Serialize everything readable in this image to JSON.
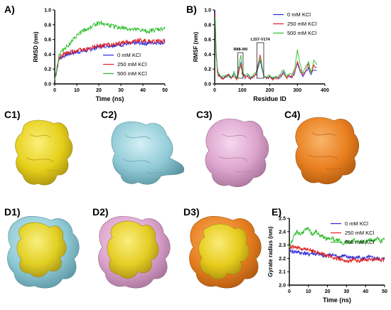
{
  "colors": {
    "red": "#e02020",
    "blue": "#2a2ad8",
    "green": "#2bbd2b",
    "yellow": "#e8d418",
    "cyan": "#8fd0dc",
    "pink": "#dfa6d0",
    "orange": "#ea8022"
  },
  "panels": {
    "A": "A)",
    "B": "B)",
    "C1": "C1)",
    "C2": "C2)",
    "C3": "C3)",
    "C4": "C4)",
    "D1": "D1)",
    "D2": "D2)",
    "D3": "D3)",
    "E": "E)"
  },
  "structures": {
    "C1": {
      "color": "yellow"
    },
    "C2": {
      "color": "cyan"
    },
    "C3": {
      "color": "pink"
    },
    "C4": {
      "color": "orange"
    },
    "D1": {
      "colors": [
        "cyan",
        "yellow"
      ]
    },
    "D2": {
      "colors": [
        "pink",
        "yellow"
      ]
    },
    "D3": {
      "colors": [
        "orange",
        "yellow"
      ]
    }
  },
  "chart_data": [
    {
      "id": "A",
      "type": "line",
      "xlabel": "Time (ns)",
      "ylabel": "RMSD (nm)",
      "xlim": [
        0,
        50
      ],
      "ylim": [
        0,
        1.0
      ],
      "xticks": [
        0,
        10,
        20,
        30,
        40,
        50
      ],
      "yticks": [
        0.0,
        0.2,
        0.4,
        0.6,
        0.8,
        1.0
      ],
      "ytick_labels": [
        "0.0",
        "0.2",
        "0.4",
        "0.6",
        "0.8",
        "1.0"
      ],
      "legend_position": "bottom-right",
      "x": [
        0,
        2,
        4,
        6,
        8,
        10,
        12,
        14,
        16,
        18,
        20,
        22,
        24,
        26,
        28,
        30,
        32,
        34,
        36,
        38,
        40,
        42,
        44,
        46,
        48,
        50
      ],
      "series": [
        {
          "name": "0 mM KCl",
          "color": "blue",
          "values": [
            0.05,
            0.34,
            0.38,
            0.4,
            0.42,
            0.43,
            0.44,
            0.45,
            0.47,
            0.48,
            0.5,
            0.51,
            0.52,
            0.52,
            0.53,
            0.53,
            0.54,
            0.54,
            0.55,
            0.55,
            0.55,
            0.55,
            0.56,
            0.56,
            0.56,
            0.56
          ]
        },
        {
          "name": "250 mM KCl",
          "color": "red",
          "values": [
            0.05,
            0.36,
            0.4,
            0.42,
            0.44,
            0.45,
            0.46,
            0.47,
            0.48,
            0.5,
            0.51,
            0.52,
            0.53,
            0.53,
            0.54,
            0.55,
            0.56,
            0.57,
            0.58,
            0.59,
            0.59,
            0.58,
            0.58,
            0.57,
            0.58,
            0.58
          ]
        },
        {
          "name": "500 mM KCl",
          "color": "green",
          "values": [
            0.05,
            0.4,
            0.47,
            0.52,
            0.58,
            0.65,
            0.7,
            0.73,
            0.76,
            0.8,
            0.83,
            0.82,
            0.8,
            0.78,
            0.77,
            0.76,
            0.75,
            0.74,
            0.73,
            0.73,
            0.72,
            0.71,
            0.72,
            0.73,
            0.74,
            0.75
          ]
        }
      ]
    },
    {
      "id": "B",
      "type": "line",
      "xlabel": "Residue ID",
      "ylabel": "RMSF (nm)",
      "xlim": [
        0,
        400
      ],
      "ylim": [
        0,
        1.0
      ],
      "xticks": [
        0,
        100,
        200,
        300,
        400
      ],
      "yticks": [
        0.0,
        0.2,
        0.4,
        0.6,
        0.8,
        1.0
      ],
      "ytick_labels": [
        "0.0",
        "0.2",
        "0.4",
        "0.6",
        "0.8",
        "1.0"
      ],
      "legend_position": "top-right",
      "annotations": [
        {
          "text": "R88-I99",
          "x_range": [
            88,
            99
          ]
        },
        {
          "text": "L157-V174",
          "x_range": [
            157,
            174
          ]
        }
      ],
      "x": [
        1,
        5,
        10,
        15,
        20,
        30,
        40,
        50,
        60,
        70,
        80,
        90,
        95,
        100,
        110,
        120,
        130,
        140,
        150,
        160,
        165,
        170,
        180,
        190,
        200,
        210,
        220,
        230,
        240,
        250,
        260,
        270,
        280,
        290,
        300,
        310,
        320,
        330,
        340,
        350,
        360,
        370
      ],
      "series": [
        {
          "name": "0 mM KCl",
          "color": "blue",
          "values": [
            1.0,
            0.45,
            0.18,
            0.12,
            0.1,
            0.08,
            0.09,
            0.12,
            0.08,
            0.14,
            0.07,
            0.22,
            0.28,
            0.16,
            0.08,
            0.12,
            0.07,
            0.1,
            0.12,
            0.25,
            0.32,
            0.22,
            0.09,
            0.08,
            0.1,
            0.07,
            0.09,
            0.08,
            0.1,
            0.16,
            0.08,
            0.1,
            0.09,
            0.14,
            0.28,
            0.18,
            0.1,
            0.16,
            0.22,
            0.12,
            0.2,
            0.18
          ]
        },
        {
          "name": "250 mM KCl",
          "color": "red",
          "values": [
            0.95,
            0.4,
            0.16,
            0.1,
            0.09,
            0.07,
            0.1,
            0.14,
            0.07,
            0.12,
            0.06,
            0.2,
            0.26,
            0.14,
            0.09,
            0.1,
            0.06,
            0.09,
            0.14,
            0.3,
            0.4,
            0.28,
            0.1,
            0.07,
            0.09,
            0.06,
            0.08,
            0.07,
            0.12,
            0.14,
            0.07,
            0.12,
            0.1,
            0.16,
            0.3,
            0.2,
            0.12,
            0.18,
            0.28,
            0.14,
            0.25,
            0.22
          ]
        },
        {
          "name": "500 mM KCl",
          "color": "green",
          "values": [
            0.9,
            0.38,
            0.2,
            0.14,
            0.11,
            0.09,
            0.12,
            0.1,
            0.09,
            0.16,
            0.08,
            0.3,
            0.38,
            0.18,
            0.1,
            0.14,
            0.08,
            0.12,
            0.15,
            0.28,
            0.35,
            0.25,
            0.1,
            0.09,
            0.12,
            0.08,
            0.1,
            0.09,
            0.14,
            0.2,
            0.1,
            0.14,
            0.12,
            0.2,
            0.45,
            0.28,
            0.14,
            0.22,
            0.3,
            0.16,
            0.32,
            0.26
          ]
        }
      ]
    },
    {
      "id": "E",
      "type": "line",
      "xlabel": "Time (ns)",
      "ylabel": "Gyrate radius (nm)",
      "xlim": [
        0,
        50
      ],
      "ylim": [
        2.0,
        2.5
      ],
      "xticks": [
        0,
        10,
        20,
        30,
        40,
        50
      ],
      "yticks": [
        2.0,
        2.1,
        2.2,
        2.3,
        2.4,
        2.5
      ],
      "ytick_labels": [
        "2.0",
        "2.1",
        "2.2",
        "2.3",
        "2.4",
        "2.5"
      ],
      "legend_position": "top-right",
      "x": [
        0,
        2,
        4,
        6,
        8,
        10,
        12,
        14,
        16,
        18,
        20,
        22,
        24,
        26,
        28,
        30,
        32,
        34,
        36,
        38,
        40,
        42,
        44,
        46,
        48,
        50
      ],
      "series": [
        {
          "name": "0 mM KCl",
          "color": "blue",
          "values": [
            2.26,
            2.25,
            2.25,
            2.24,
            2.24,
            2.23,
            2.24,
            2.23,
            2.23,
            2.22,
            2.22,
            2.23,
            2.22,
            2.21,
            2.22,
            2.21,
            2.21,
            2.2,
            2.21,
            2.2,
            2.2,
            2.21,
            2.2,
            2.2,
            2.19,
            2.2
          ]
        },
        {
          "name": "250 mM KCl",
          "color": "red",
          "values": [
            2.28,
            2.29,
            2.28,
            2.27,
            2.27,
            2.26,
            2.26,
            2.25,
            2.24,
            2.23,
            2.22,
            2.21,
            2.2,
            2.2,
            2.19,
            2.18,
            2.18,
            2.19,
            2.18,
            2.19,
            2.19,
            2.19,
            2.19,
            2.2,
            2.19,
            2.19
          ]
        },
        {
          "name": "500 mM KCl",
          "color": "green",
          "values": [
            2.29,
            2.35,
            2.4,
            2.38,
            2.41,
            2.42,
            2.38,
            2.4,
            2.37,
            2.36,
            2.34,
            2.36,
            2.33,
            2.34,
            2.31,
            2.33,
            2.32,
            2.34,
            2.32,
            2.33,
            2.32,
            2.34,
            2.33,
            2.35,
            2.33,
            2.34
          ]
        }
      ]
    }
  ]
}
